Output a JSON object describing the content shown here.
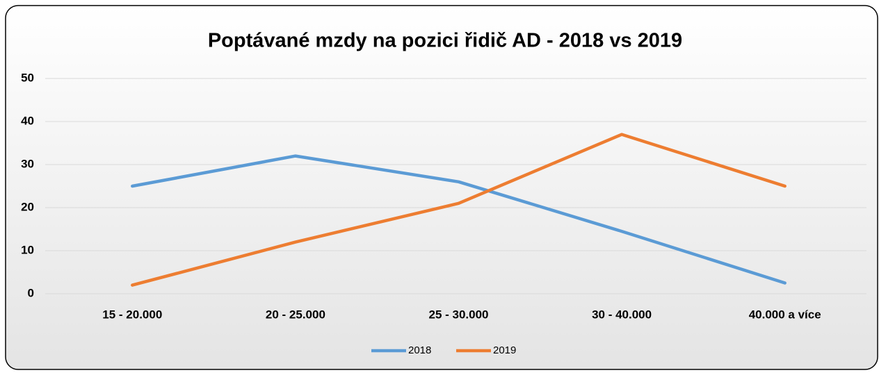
{
  "chart_data": {
    "type": "line",
    "title": "Poptávané mzdy na pozici řidič AD - 2018 vs 2019",
    "categories": [
      "15 - 20.000",
      "20 - 25.000",
      "25 - 30.000",
      "30 - 40.000",
      "40.000 a více"
    ],
    "series": [
      {
        "name": "2018",
        "color": "#5b9bd5",
        "values": [
          25,
          32,
          26,
          14.5,
          2.5
        ]
      },
      {
        "name": "2019",
        "color": "#ed7d31",
        "values": [
          2,
          12,
          21,
          37,
          25
        ]
      }
    ],
    "ylim": [
      0,
      50
    ],
    "yticks": [
      0,
      10,
      20,
      30,
      40,
      50
    ],
    "grid": true,
    "legend": "bottom"
  }
}
